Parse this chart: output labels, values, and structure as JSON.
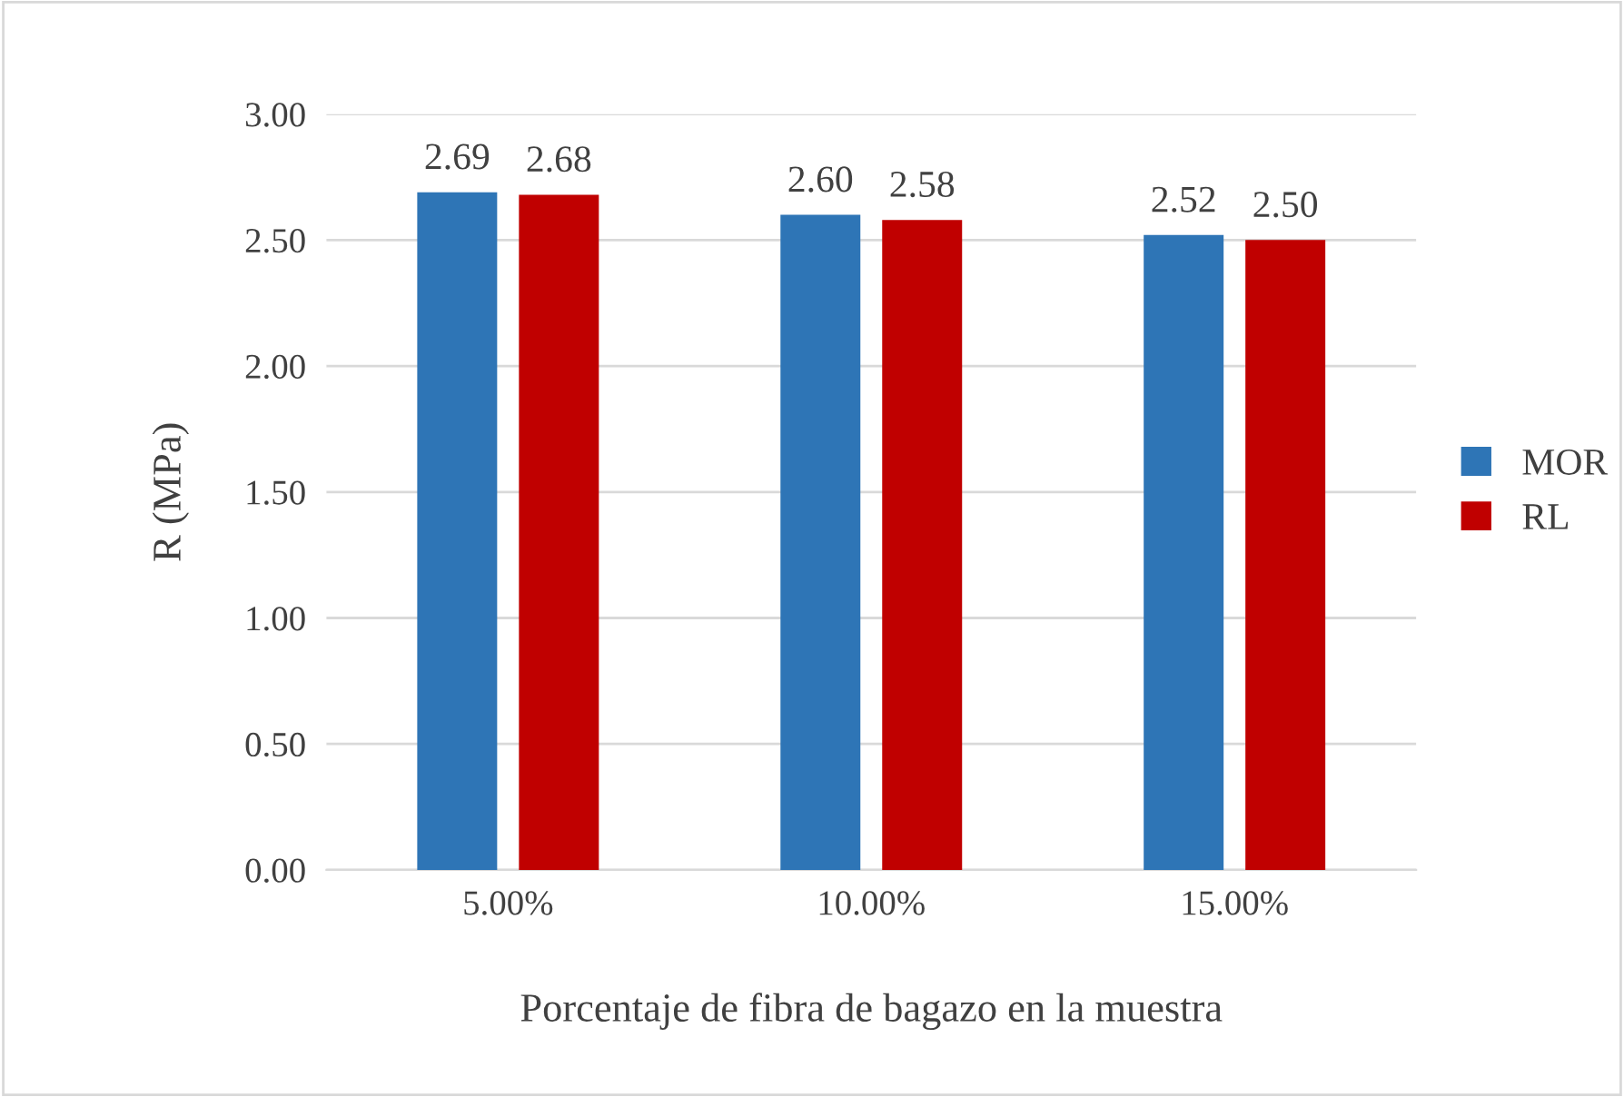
{
  "chart_data": {
    "type": "bar",
    "xlabel": "Porcentaje de fibra de bagazo en la muestra",
    "ylabel": "R (MPa)",
    "categories": [
      "5.00%",
      "10.00%",
      "15.00%"
    ],
    "series": [
      {
        "name": "MOR",
        "color": "#2e75b6",
        "values": [
          2.69,
          2.6,
          2.52
        ],
        "value_labels": [
          "2.69",
          "2.60",
          "2.52"
        ]
      },
      {
        "name": "RL",
        "color": "#c00000",
        "values": [
          2.68,
          2.58,
          2.5
        ],
        "value_labels": [
          "2.68",
          "2.58",
          "2.50"
        ]
      }
    ],
    "ylim": [
      0,
      3
    ],
    "yticks": [
      {
        "value": 0,
        "label": "0.00"
      },
      {
        "value": 0.5,
        "label": "0.50"
      },
      {
        "value": 1,
        "label": "1.00"
      },
      {
        "value": 1.5,
        "label": "1.50"
      },
      {
        "value": 2,
        "label": "2.00"
      },
      {
        "value": 2.5,
        "label": "2.50"
      },
      {
        "value": 3,
        "label": "3.00"
      }
    ],
    "grid": "y",
    "legend": "right"
  }
}
